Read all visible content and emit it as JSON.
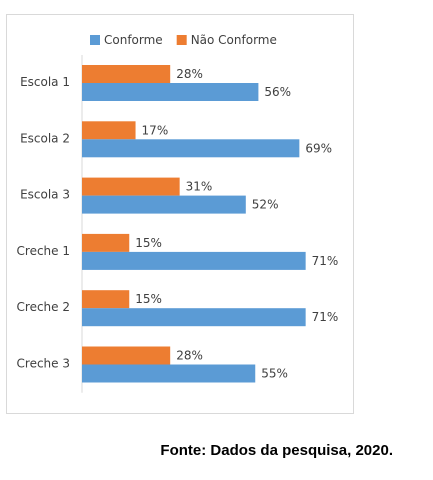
{
  "chart_data": {
    "type": "bar",
    "orientation": "horizontal",
    "categories": [
      "Escola 1",
      "Escola 2",
      "Escola 3",
      "Creche 1",
      "Creche 2",
      "Creche 3"
    ],
    "series": [
      {
        "name": "Conforme",
        "color": "#5b9bd5",
        "values": [
          56,
          69,
          52,
          71,
          71,
          55
        ]
      },
      {
        "name": "Não Conforme",
        "color": "#ed7d31",
        "values": [
          28,
          17,
          31,
          15,
          15,
          28
        ]
      }
    ],
    "value_unit": "%",
    "xlim": [
      0,
      80
    ],
    "grid": false,
    "legend_position": "top"
  },
  "source_note": "Fonte: Dados da pesquisa, 2020."
}
